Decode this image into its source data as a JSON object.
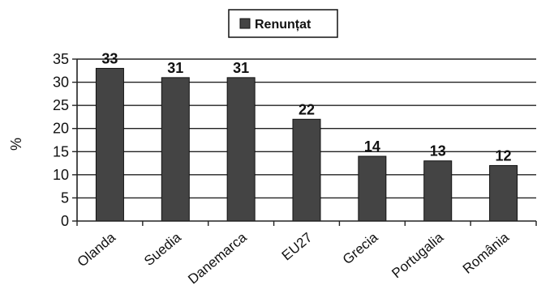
{
  "chart_data": {
    "type": "bar",
    "categories": [
      "Olanda",
      "Suedia",
      "Danemarca",
      "EU27",
      "Grecia",
      "Portugalia",
      "România"
    ],
    "series": [
      {
        "name": "Renunțat",
        "values": [
          33,
          31,
          31,
          22,
          14,
          13,
          12
        ]
      }
    ],
    "ylabel": "%",
    "xlabel": "",
    "ylim": [
      0,
      35
    ],
    "yticks": [
      0,
      5,
      10,
      15,
      20,
      25,
      30,
      35
    ],
    "grid": true,
    "legend_position": "top-center",
    "bar_color": "#444444",
    "data_labels": true
  }
}
